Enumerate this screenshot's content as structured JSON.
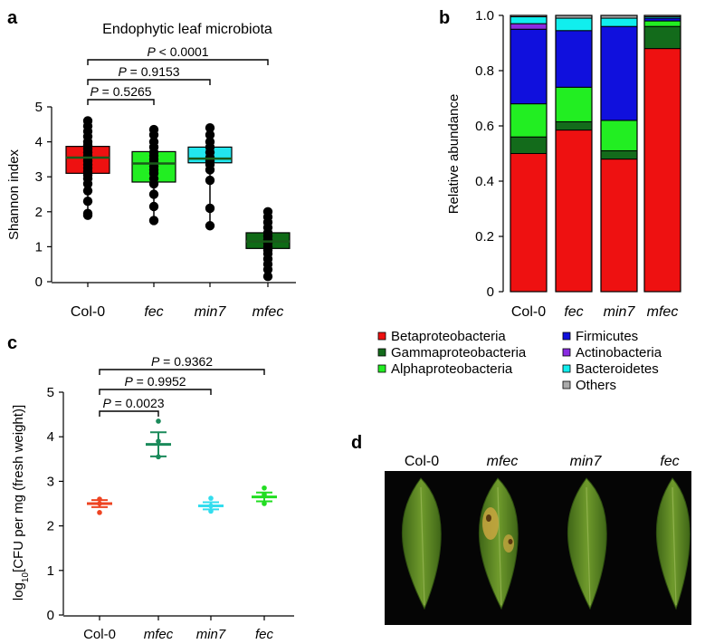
{
  "panels": {
    "a": "a",
    "b": "b",
    "c": "c",
    "d": "d"
  },
  "colors": {
    "col0": "#ee1111",
    "fec": "#22ee22",
    "min7": "#22e6ee",
    "mfec": "#0f6a16",
    "beta": "#ee1111",
    "gamma": "#136b1b",
    "alpha": "#22ee22",
    "firm": "#1010dd",
    "actino": "#8a2be2",
    "bact": "#11eeee",
    "others": "#aaaaaa",
    "c_col0": "#ee4422",
    "c_mfec": "#1a8a5a",
    "c_min7": "#33ddee",
    "c_fec": "#22dd22",
    "leaf_bg": "#050505",
    "leaf": "#6f9a2c",
    "leaf_dark": "#3f6617",
    "leaf_yellow": "#c9a640"
  },
  "chart_data": [
    {
      "panel": "a",
      "type": "box",
      "title": "Endophytic leaf microbiota",
      "ylabel": "Shannon index",
      "ylim": [
        0,
        5
      ],
      "yticks": [
        "0",
        "1",
        "2",
        "3",
        "4",
        "5"
      ],
      "categories": [
        "Col-0",
        "fec",
        "min7",
        "mfec"
      ],
      "category_italic": [
        false,
        true,
        true,
        true
      ],
      "boxes": [
        {
          "q1": 3.1,
          "median": 3.55,
          "q3": 3.87,
          "whisker_low": 1.9,
          "whisker_high": 4.6,
          "points": [
            1.9,
            1.95,
            2.3,
            2.6,
            2.8,
            2.95,
            3.05,
            3.15,
            3.25,
            3.35,
            3.45,
            3.55,
            3.6,
            3.7,
            3.8,
            3.9,
            4.0,
            4.15,
            4.3,
            4.45,
            4.6
          ]
        },
        {
          "q1": 2.85,
          "median": 3.38,
          "q3": 3.72,
          "whisker_low": 1.75,
          "whisker_high": 4.35,
          "points": [
            1.75,
            2.15,
            2.5,
            2.8,
            2.95,
            3.1,
            3.2,
            3.3,
            3.4,
            3.5,
            3.6,
            3.7,
            3.85,
            4.0,
            4.2,
            4.35
          ]
        },
        {
          "q1": 3.4,
          "median": 3.52,
          "q3": 3.85,
          "whisker_low": 1.6,
          "whisker_high": 4.4,
          "points": [
            1.6,
            2.1,
            2.9,
            3.2,
            3.35,
            3.45,
            3.55,
            3.7,
            3.85,
            4.0,
            4.2,
            4.4
          ]
        },
        {
          "q1": 0.95,
          "median": 1.15,
          "q3": 1.4,
          "whisker_low": 0.15,
          "whisker_high": 2.0,
          "points": [
            0.15,
            0.35,
            0.5,
            0.65,
            0.8,
            0.9,
            1.0,
            1.1,
            1.2,
            1.3,
            1.4,
            1.55,
            1.7,
            1.85,
            2.0
          ]
        }
      ],
      "comparisons": [
        {
          "label": "P < 0.0001",
          "from": "Col-0",
          "to": "mfec"
        },
        {
          "label": "P = 0.9153",
          "from": "Col-0",
          "to": "min7"
        },
        {
          "label": "P = 0.5265",
          "from": "Col-0",
          "to": "fec"
        }
      ]
    },
    {
      "panel": "b",
      "type": "bar",
      "stacked": true,
      "ylabel": "Relative abundance",
      "ylim": [
        0,
        1
      ],
      "yticks": [
        "0",
        "0.2",
        "0.4",
        "0.6",
        "0.8",
        "1.0"
      ],
      "categories": [
        "Col-0",
        "fec",
        "min7",
        "mfec"
      ],
      "category_italic": [
        false,
        true,
        true,
        true
      ],
      "series": [
        {
          "name": "Betaproteobacteria",
          "key": "beta",
          "values": [
            0.5,
            0.585,
            0.48,
            0.88
          ]
        },
        {
          "name": "Gammaproteobacteria",
          "key": "gamma",
          "values": [
            0.06,
            0.03,
            0.03,
            0.08
          ]
        },
        {
          "name": "Alphaproteobacteria",
          "key": "alpha",
          "values": [
            0.12,
            0.125,
            0.11,
            0.02
          ]
        },
        {
          "name": "Firmicutes",
          "key": "firm",
          "values": [
            0.27,
            0.205,
            0.34,
            0.01
          ]
        },
        {
          "name": "Actinobacteria",
          "key": "actino",
          "values": [
            0.02,
            0.0,
            0.0,
            0.0
          ]
        },
        {
          "name": "Bacteroidetes",
          "key": "bact",
          "values": [
            0.025,
            0.045,
            0.03,
            0.005
          ]
        },
        {
          "name": "Others",
          "key": "others",
          "values": [
            0.005,
            0.01,
            0.01,
            0.005
          ]
        }
      ],
      "legend_columns": [
        [
          "beta",
          "gamma",
          "alpha"
        ],
        [
          "firm",
          "actino",
          "bact",
          "others"
        ]
      ]
    },
    {
      "panel": "c",
      "type": "scatter",
      "ylabel_prefix": "log",
      "ylabel_sub": "10",
      "ylabel_rest": "[CFU per mg (fresh weight)]",
      "ylim": [
        0,
        5
      ],
      "yticks": [
        "0",
        "1",
        "2",
        "3",
        "4",
        "5"
      ],
      "categories": [
        "Col-0",
        "mfec",
        "min7",
        "fec"
      ],
      "category_italic": [
        false,
        true,
        true,
        true
      ],
      "groups": [
        {
          "key": "c_col0",
          "mean": 2.5,
          "err": 0.08,
          "points": [
            2.6,
            2.5,
            2.3
          ]
        },
        {
          "key": "c_mfec",
          "mean": 3.83,
          "err": 0.27,
          "points": [
            4.35,
            3.9,
            3.55
          ]
        },
        {
          "key": "c_min7",
          "mean": 2.45,
          "err": 0.08,
          "points": [
            2.62,
            2.45,
            2.33
          ]
        },
        {
          "key": "c_fec",
          "mean": 2.65,
          "err": 0.1,
          "points": [
            2.85,
            2.7,
            2.5
          ]
        }
      ],
      "comparisons": [
        {
          "label": "P = 0.9362",
          "from": "Col-0",
          "to": "fec"
        },
        {
          "label": "P = 0.9952",
          "from": "Col-0",
          "to": "min7"
        },
        {
          "label": "P = 0.0023",
          "from": "Col-0",
          "to": "mfec"
        }
      ]
    }
  ],
  "leaves": {
    "labels": [
      "Col-0",
      "mfec",
      "min7",
      "fec"
    ],
    "label_italic": [
      false,
      true,
      true,
      true
    ],
    "yellowing": [
      false,
      true,
      false,
      false
    ]
  }
}
